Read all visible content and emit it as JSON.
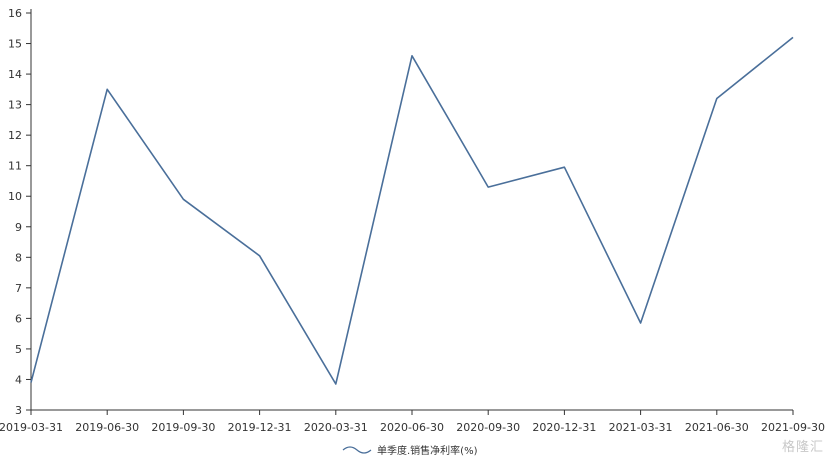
{
  "chart_data": {
    "type": "line",
    "categories": [
      "2019-03-31",
      "2019-06-30",
      "2019-09-30",
      "2019-12-31",
      "2020-03-31",
      "2020-06-30",
      "2020-09-30",
      "2020-12-31",
      "2021-03-31",
      "2021-06-30",
      "2021-09-30"
    ],
    "series": [
      {
        "name": "单季度.销售净利率(%)",
        "values": [
          3.9,
          13.5,
          9.9,
          8.05,
          3.85,
          14.6,
          10.3,
          10.95,
          5.85,
          13.2,
          15.2
        ],
        "color": "#4a6f9a"
      }
    ],
    "ylim": [
      3,
      16
    ],
    "yticks": [
      3,
      4,
      5,
      6,
      7,
      8,
      9,
      10,
      11,
      12,
      13,
      14,
      15,
      16
    ],
    "legend": "bottom-center",
    "grid": false
  },
  "watermark": "格隆汇"
}
